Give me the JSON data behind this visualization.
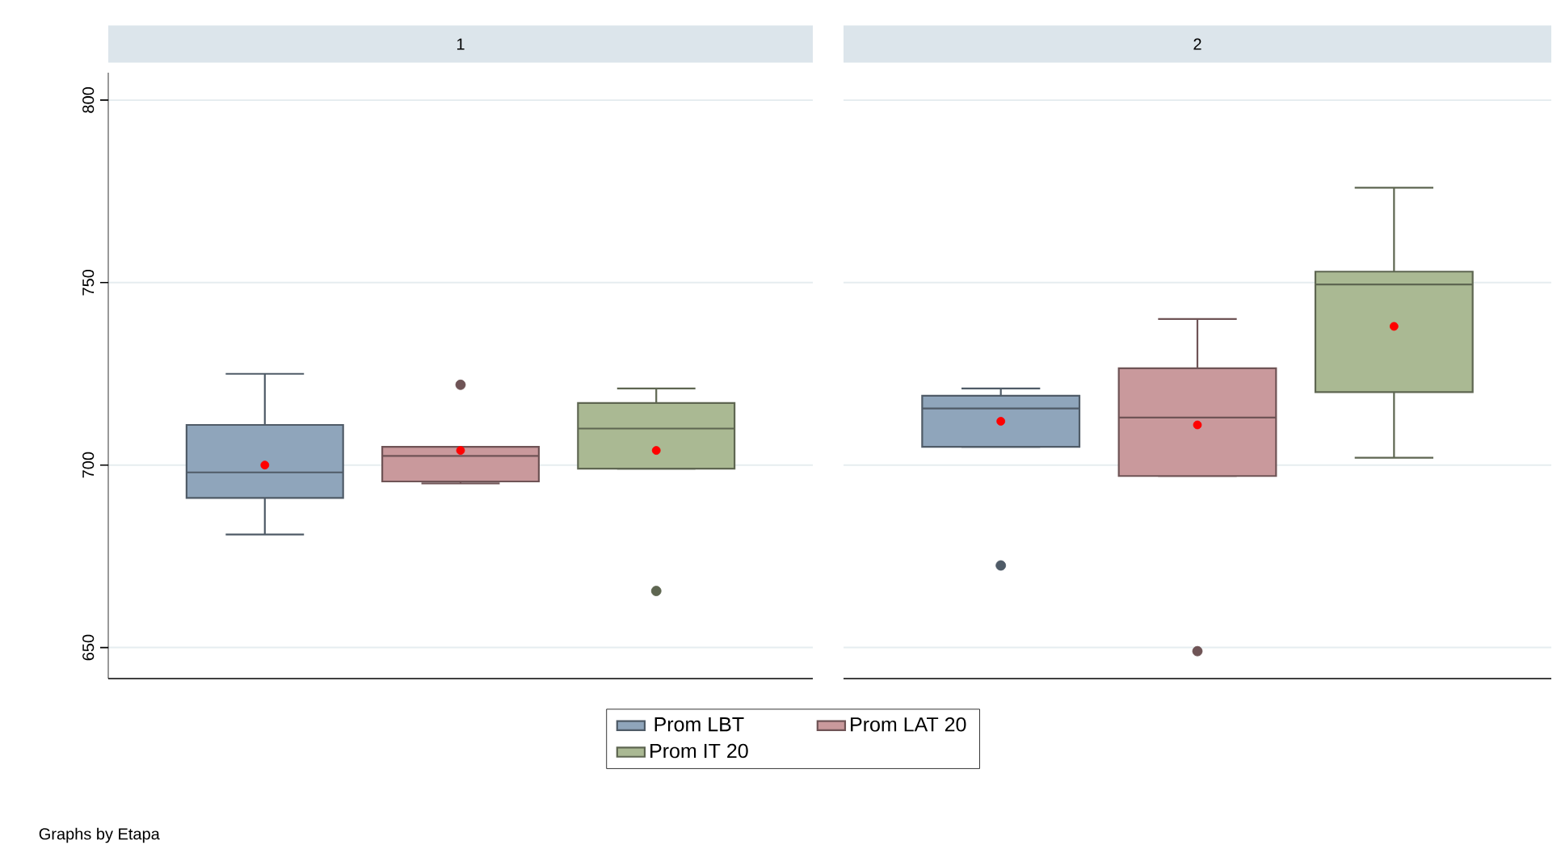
{
  "chart_data": {
    "type": "box",
    "categories": [
      "1",
      "2"
    ],
    "ylim": [
      641.5,
      807.5
    ],
    "yticks": [
      650,
      700,
      750,
      800
    ],
    "grid": "y",
    "legend": "bottom",
    "annotations": [
      "Graphs by Etapa"
    ],
    "series": [
      {
        "name": "Prom LBT",
        "color": "#8fa5bb",
        "boxes": [
          {
            "low": 681,
            "q1": 691,
            "median": 698,
            "q3": 711,
            "high": 725,
            "mean": 700
          },
          {
            "low": 705,
            "q1": 705,
            "median": 715.5,
            "q3": 719,
            "high": 721,
            "mean": 712,
            "outliers": [
              672.5
            ]
          }
        ]
      },
      {
        "name": "Prom LAT 20",
        "color": "#c9999c",
        "boxes": [
          {
            "low": 695,
            "q1": 695.5,
            "median": 702.5,
            "q3": 705,
            "high": 705,
            "mean": 704,
            "outliers": [
              722
            ]
          },
          {
            "low": 697,
            "q1": 697,
            "median": 713,
            "q3": 726.5,
            "high": 740,
            "mean": 711,
            "outliers": [
              649
            ]
          }
        ]
      },
      {
        "name": "Prom IT 20",
        "color": "#aab993",
        "boxes": [
          {
            "low": 699,
            "q1": 699,
            "median": 710,
            "q3": 717,
            "high": 721,
            "mean": 704,
            "outliers": [
              665.5
            ]
          },
          {
            "low": 702,
            "q1": 720,
            "median": 749.5,
            "q3": 753,
            "high": 776,
            "mean": 738
          }
        ]
      }
    ]
  }
}
